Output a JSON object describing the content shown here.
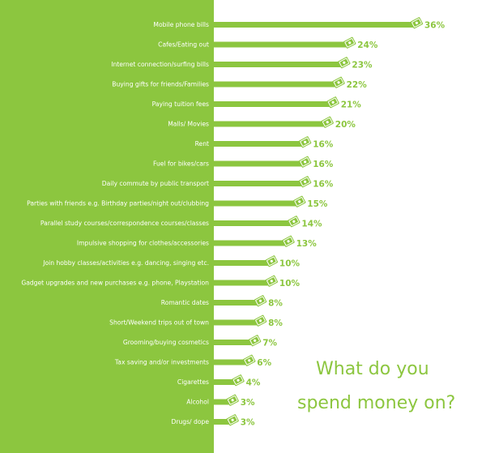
{
  "colors": {
    "accent": "#8cc63f",
    "panel": "#8cc63f",
    "background": "#ffffff",
    "label_text": "#ffffff",
    "icon": "money-note-icon"
  },
  "chart_data": {
    "type": "bar",
    "orientation": "horizontal",
    "title_lines": [
      "What do you",
      "spend money on?"
    ],
    "categories": [
      "Mobile phone bills",
      "Cafes/Eating out",
      "Internet connection/surfing bills",
      "Buying gifts for friends/Families",
      "Paying tuition fees",
      "Malls/ Movies",
      "Rent",
      "Fuel for bikes/cars",
      "Daily commute by public transport",
      "Parties with friends e.g. Birthday parties/night out/clubbing",
      "Parallel study courses/correspondence courses/classes",
      "Impulsive shopping for clothes/accessories",
      "Join hobby classes/activities e.g. dancing, singing etc.",
      "Gadget upgrades and new purchases e.g. phone, Playstation",
      "Romantic dates",
      "Short/Weekend trips out of town",
      "Grooming/buying cosmetics",
      "Tax saving and/or investments",
      "Cigarettes",
      "Alcohol",
      "Drugs/ dope"
    ],
    "values": [
      36,
      24,
      23,
      22,
      21,
      20,
      16,
      16,
      16,
      15,
      14,
      13,
      10,
      10,
      8,
      8,
      7,
      6,
      4,
      3,
      3
    ],
    "value_labels": [
      "36%",
      "24%",
      "23%",
      "22%",
      "21%",
      "20%",
      "16%",
      "16%",
      "16%",
      "15%",
      "14%",
      "13%",
      "10%",
      "10%",
      "8%",
      "8%",
      "7%",
      "6%",
      "4%",
      "3%",
      "3%"
    ],
    "unit": "%"
  }
}
